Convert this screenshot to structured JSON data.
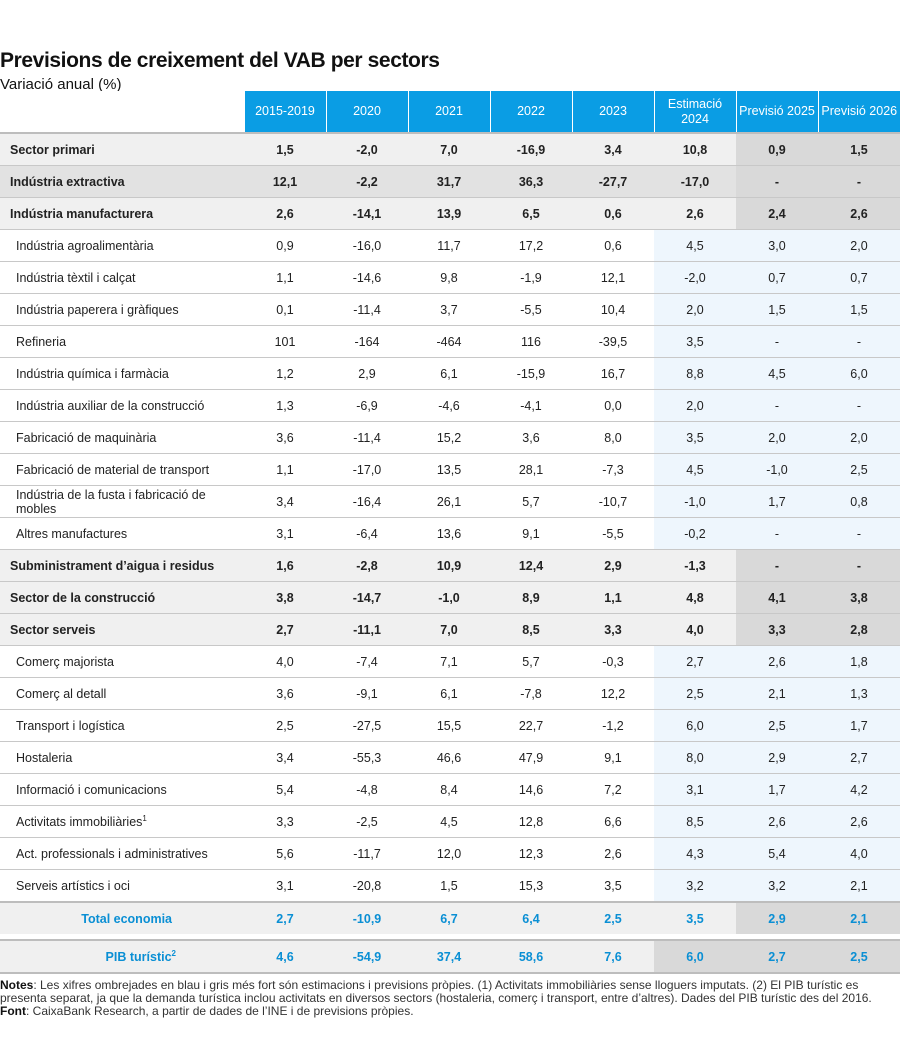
{
  "title": "Previsions de creixement del VAB per sectors",
  "subtitle": "Variació anual (%)",
  "columns": [
    "2015-2019",
    "2020",
    "2021",
    "2022",
    "2023",
    "Estimació 2024",
    "Previsió 2025",
    "Previsió 2026"
  ],
  "rows": [
    {
      "label": "Sector primari",
      "type": "sec",
      "values": [
        "1,5",
        "-2,0",
        "7,0",
        "-16,9",
        "3,4",
        "10,8",
        "0,9",
        "1,5"
      ]
    },
    {
      "label": "Indústria extractiva",
      "type": "sec dark",
      "values": [
        "12,1",
        "-2,2",
        "31,7",
        "36,3",
        "-27,7",
        "-17,0",
        "-",
        "-"
      ]
    },
    {
      "label": "Indústria manufacturera",
      "type": "sec",
      "values": [
        "2,6",
        "-14,1",
        "13,9",
        "6,5",
        "0,6",
        "2,6",
        "2,4",
        "2,6"
      ]
    },
    {
      "label": "Indústria agroalimentària",
      "type": "sub",
      "values": [
        "0,9",
        "-16,0",
        "11,7",
        "17,2",
        "0,6",
        "4,5",
        "3,0",
        "2,0"
      ]
    },
    {
      "label": "Indústria tèxtil i calçat",
      "type": "sub",
      "values": [
        "1,1",
        "-14,6",
        "9,8",
        "-1,9",
        "12,1",
        "-2,0",
        "0,7",
        "0,7"
      ]
    },
    {
      "label": "Indústria paperera i gràfiques",
      "type": "sub",
      "values": [
        "0,1",
        "-11,4",
        "3,7",
        "-5,5",
        "10,4",
        "2,0",
        "1,5",
        "1,5"
      ]
    },
    {
      "label": "Refineria",
      "type": "sub",
      "values": [
        "101",
        "-164",
        "-464",
        "116",
        "-39,5",
        "3,5",
        "-",
        "-"
      ]
    },
    {
      "label": "Indústria química i farmàcia",
      "type": "sub",
      "values": [
        "1,2",
        "2,9",
        "6,1",
        "-15,9",
        "16,7",
        "8,8",
        "4,5",
        "6,0"
      ]
    },
    {
      "label": "Indústria auxiliar de la construcció",
      "type": "sub",
      "values": [
        "1,3",
        "-6,9",
        "-4,6",
        "-4,1",
        "0,0",
        "2,0",
        "-",
        "-"
      ]
    },
    {
      "label": "Fabricació de maquinària",
      "type": "sub",
      "values": [
        "3,6",
        "-11,4",
        "15,2",
        "3,6",
        "8,0",
        "3,5",
        "2,0",
        "2,0"
      ]
    },
    {
      "label": "Fabricació de material de transport",
      "type": "sub",
      "values": [
        "1,1",
        "-17,0",
        "13,5",
        "28,1",
        "-7,3",
        "4,5",
        "-1,0",
        "2,5"
      ]
    },
    {
      "label": "Indústria de la fusta i fabricació de mobles",
      "type": "sub",
      "values": [
        "3,4",
        "-16,4",
        "26,1",
        "5,7",
        "-10,7",
        "-1,0",
        "1,7",
        "0,8"
      ]
    },
    {
      "label": "Altres manufactures",
      "type": "sub",
      "values": [
        "3,1",
        "-6,4",
        "13,6",
        "9,1",
        "-5,5",
        "-0,2",
        "-",
        "-"
      ]
    },
    {
      "label": "Subministrament d’aigua i residus",
      "type": "sec",
      "values": [
        "1,6",
        "-2,8",
        "10,9",
        "12,4",
        "2,9",
        "-1,3",
        "-",
        "-"
      ]
    },
    {
      "label": "Sector de la construcció",
      "type": "sec",
      "values": [
        "3,8",
        "-14,7",
        "-1,0",
        "8,9",
        "1,1",
        "4,8",
        "4,1",
        "3,8"
      ]
    },
    {
      "label": "Sector serveis",
      "type": "sec",
      "values": [
        "2,7",
        "-11,1",
        "7,0",
        "8,5",
        "3,3",
        "4,0",
        "3,3",
        "2,8"
      ]
    },
    {
      "label": "Comerç majorista",
      "type": "sub",
      "values": [
        "4,0",
        "-7,4",
        "7,1",
        "5,7",
        "-0,3",
        "2,7",
        "2,6",
        "1,8"
      ]
    },
    {
      "label": "Comerç al detall",
      "type": "sub",
      "values": [
        "3,6",
        "-9,1",
        "6,1",
        "-7,8",
        "12,2",
        "2,5",
        "2,1",
        "1,3"
      ]
    },
    {
      "label": "Transport i logística",
      "type": "sub",
      "values": [
        "2,5",
        "-27,5",
        "15,5",
        "22,7",
        "-1,2",
        "6,0",
        "2,5",
        "1,7"
      ]
    },
    {
      "label": "Hostaleria",
      "type": "sub",
      "values": [
        "3,4",
        "-55,3",
        "46,6",
        "47,9",
        "9,1",
        "8,0",
        "2,9",
        "2,7"
      ]
    },
    {
      "label": "Informació i comunicacions",
      "type": "sub",
      "values": [
        "5,4",
        "-4,8",
        "8,4",
        "14,6",
        "7,2",
        "3,1",
        "1,7",
        "4,2"
      ]
    },
    {
      "label": "Activitats immobiliàries",
      "sup": "1",
      "type": "sub",
      "values": [
        "3,3",
        "-2,5",
        "4,5",
        "12,8",
        "6,6",
        "8,5",
        "2,6",
        "2,6"
      ]
    },
    {
      "label": "Act. professionals i administratives",
      "type": "sub",
      "values": [
        "5,6",
        "-11,7",
        "12,0",
        "12,3",
        "2,6",
        "4,3",
        "5,4",
        "4,0"
      ]
    },
    {
      "label": "Serveis artístics i oci",
      "type": "sub",
      "values": [
        "3,1",
        "-20,8",
        "1,5",
        "15,3",
        "3,5",
        "3,2",
        "3,2",
        "2,1"
      ]
    }
  ],
  "total": {
    "label": "Total economia",
    "values": [
      "2,7",
      "-10,9",
      "6,7",
      "6,4",
      "2,5",
      "3,5",
      "2,9",
      "2,1"
    ]
  },
  "pib": {
    "label": "PIB turístic",
    "sup": "2",
    "values": [
      "4,6",
      "-54,9",
      "37,4",
      "58,6",
      "7,6",
      "6,0",
      "2,7",
      "2,5"
    ]
  },
  "notes": {
    "notes_label": "Notes",
    "notes_text": ": Les xifres ombrejades en blau i gris més fort són estimacions i previsions pròpies. (1) Activitats immobiliàries sense lloguers imputats. (2) El PIB turístic es presenta separat, ja que la demanda turística inclou activitats en diversos sectors (hostaleria, comerç i transport, entre d’altres). Dades del PIB turístic des del 2016.",
    "font_label": "Font",
    "font_text": ": CaixaBank Research, a partir de dades de l’INE i de previsions pròpies."
  }
}
